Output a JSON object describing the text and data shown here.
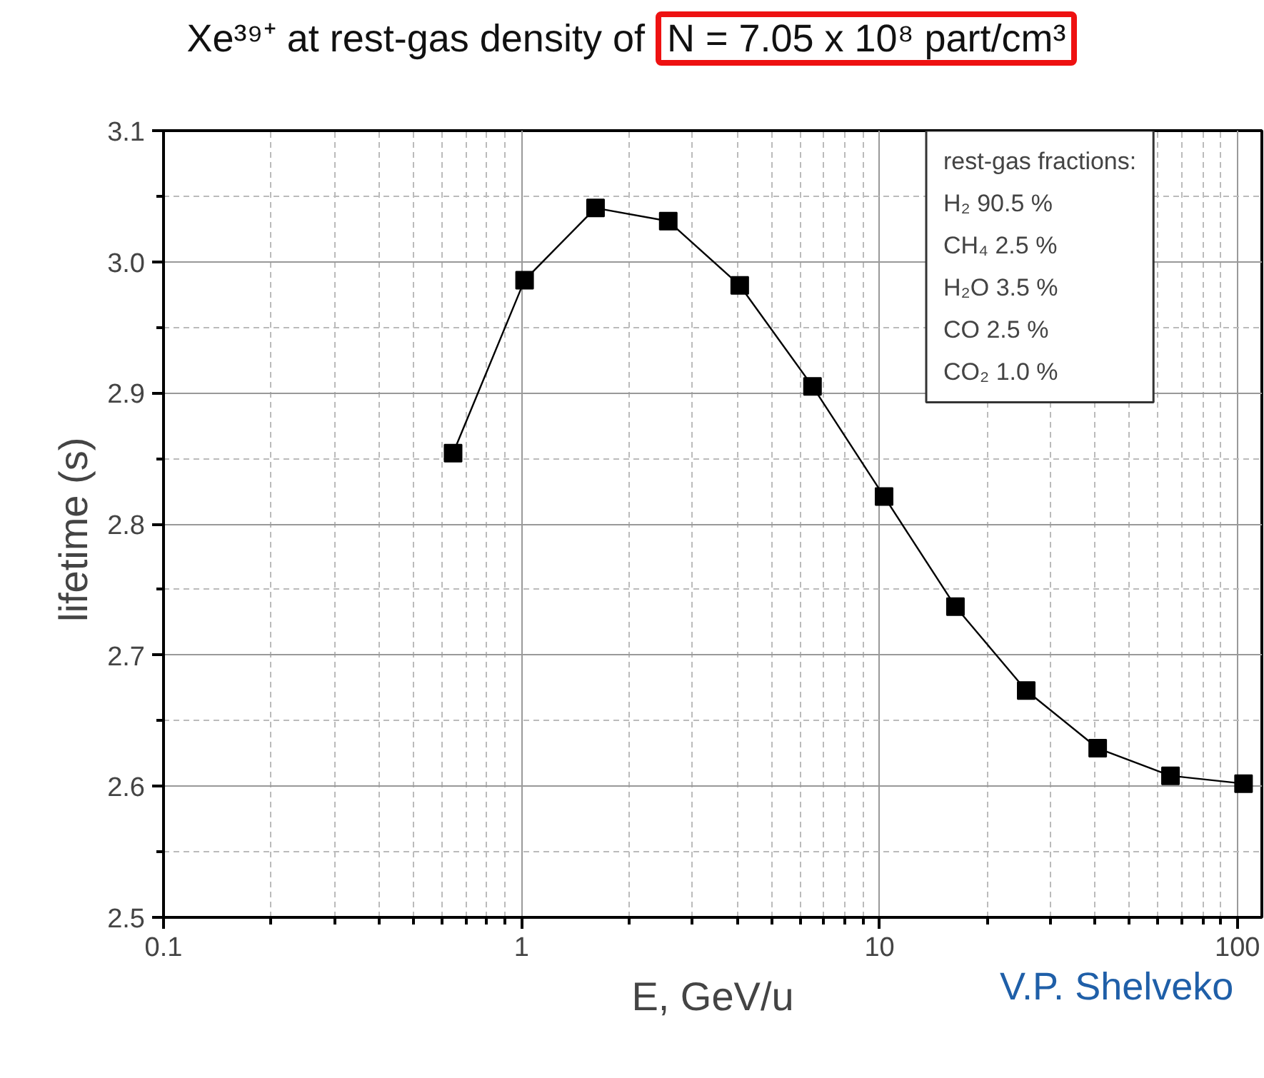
{
  "chart_data": {
    "type": "line",
    "title": "Xe³⁹⁺ at rest-gas density of N = 7.05 x 10⁸ part/cm³",
    "xlabel": "E, GeV/u",
    "ylabel": "lifetime  (s)",
    "x": [
      0.644,
      1.02,
      1.61,
      2.57,
      4.07,
      6.5,
      10.3,
      16.3,
      25.7,
      40.7,
      65,
      104
    ],
    "series": [
      {
        "color": "#000000",
        "values": [
          2.854,
          2.986,
          3.041,
          3.031,
          2.982,
          2.905,
          2.821,
          2.737,
          2.673,
          2.629,
          2.608,
          2.602
        ]
      }
    ],
    "marker": "square",
    "line_style": "solid",
    "log": "x",
    "grid": true,
    "xlim": [
      0.1,
      117
    ],
    "xticks": [
      0.1,
      1,
      10,
      100
    ],
    "ylim": [
      2.5,
      3.1
    ],
    "yticks": [
      2.5,
      2.6,
      2.7,
      2.8,
      2.9,
      {
        "value": 3.0,
        "label": "3.0"
      },
      3.1
    ],
    "annotations": [
      "rest-gas fractions:",
      "H₂    90.5 %",
      "CH₄   2.5 %",
      "H₂O   3.5 %",
      "CO     2.5 %",
      "CO₂    1.0 %",
      "V.P. Shelveko"
    ]
  }
}
